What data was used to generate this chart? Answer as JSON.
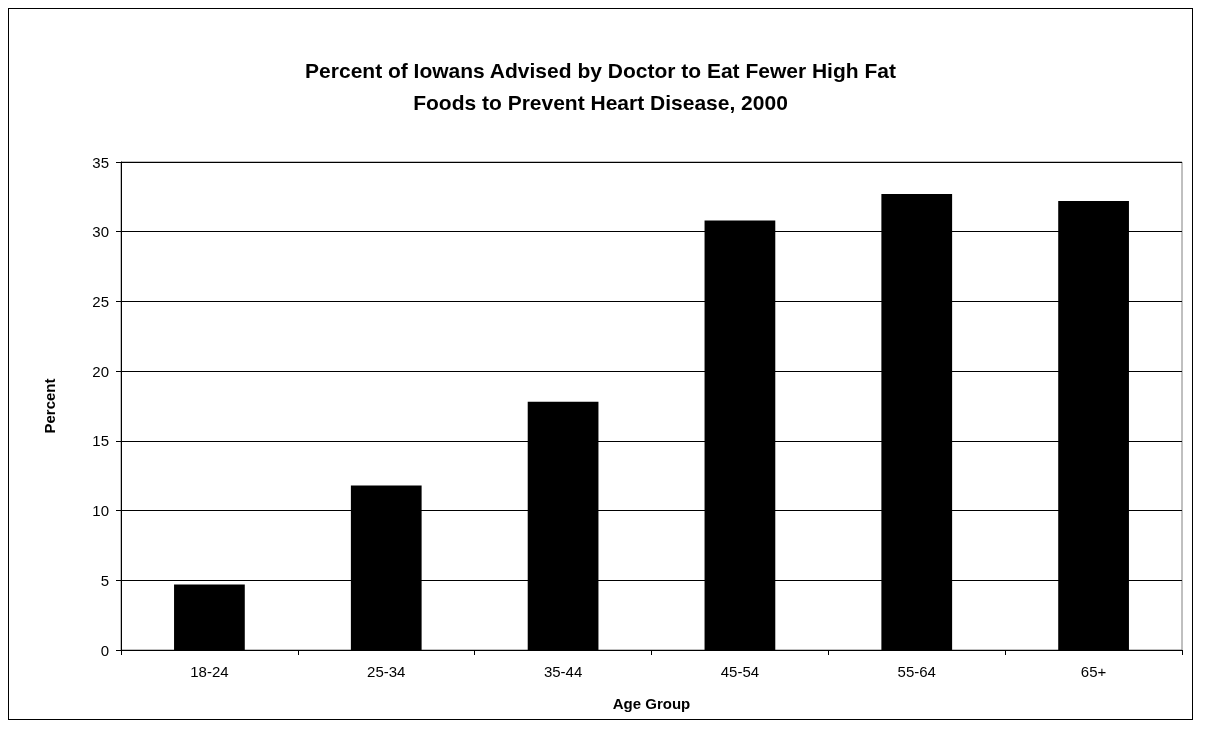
{
  "chart_data": {
    "type": "bar",
    "title": "Percent of Iowans Advised by Doctor to Eat Fewer High Fat\nFoods to Prevent Heart Disease, 2000",
    "xlabel": "Age Group",
    "ylabel": "Percent",
    "categories": [
      "18-24",
      "25-34",
      "35-44",
      "45-54",
      "55-64",
      "65+"
    ],
    "values": [
      4.7,
      11.8,
      17.8,
      30.8,
      32.7,
      32.2
    ],
    "color": "#000000",
    "ylim": [
      0,
      35
    ],
    "yticks": [
      0,
      5,
      10,
      15,
      20,
      25,
      30,
      35
    ],
    "grid": "y"
  }
}
